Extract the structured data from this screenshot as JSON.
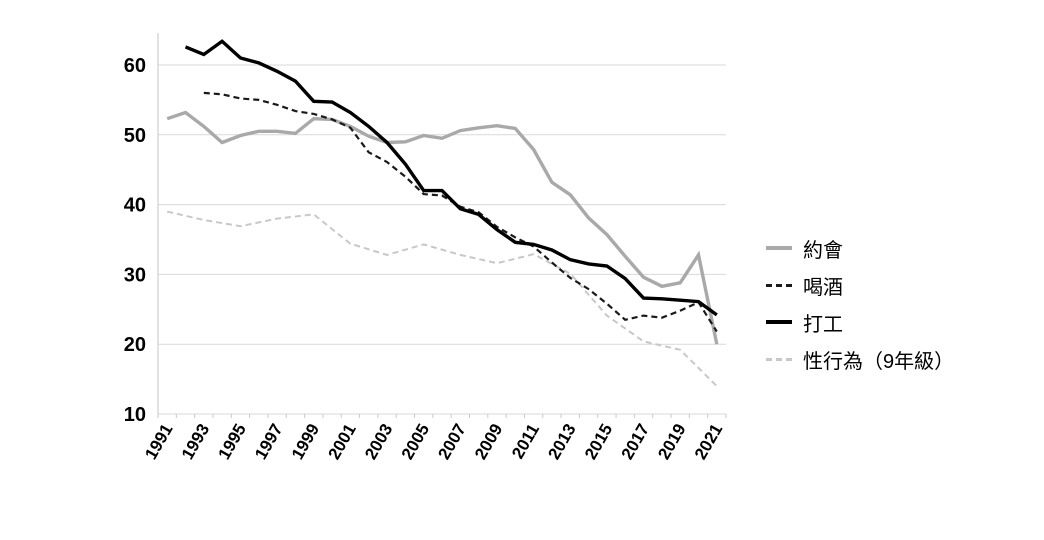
{
  "chart_data": {
    "type": "line",
    "title": "",
    "xlabel": "",
    "ylabel": "",
    "x_range": [
      1991,
      2021
    ],
    "ylim": [
      10,
      65
    ],
    "y_ticks": [
      10,
      20,
      30,
      40,
      50,
      60
    ],
    "x_tick_labels": [
      "1991",
      "1993",
      "1995",
      "1997",
      "1999",
      "2001",
      "2003",
      "2005",
      "2007",
      "2009",
      "2011",
      "2013",
      "2015",
      "2017",
      "2019",
      "2021"
    ],
    "grid": "horizontal-only",
    "legend_position": "right",
    "colors": {
      "grid": "#d9d9d9",
      "axis": "#cfcfcf",
      "text": "#000000",
      "solid_gray": "#a9a9a9",
      "dashed_black": "#1a1a1a",
      "solid_black": "#000000",
      "dashed_lightgray": "#c8c8c8"
    },
    "series": [
      {
        "name": "性行為（9年級）",
        "style": "dashed-lightgray",
        "color": "#c8c8c8",
        "years": [
          1991,
          1993,
          1995,
          1997,
          1999,
          2001,
          2003,
          2005,
          2007,
          2009,
          2011,
          2013,
          2015,
          2017,
          2019,
          2021
        ],
        "values": [
          39.0,
          37.8,
          36.9,
          38.0,
          38.6,
          34.4,
          32.8,
          34.3,
          32.8,
          31.6,
          32.9,
          30.1,
          24.1,
          20.4,
          19.2,
          14.0
        ]
      },
      {
        "name": "約會",
        "style": "solid-gray",
        "color": "#a9a9a9",
        "years": [
          1991,
          1992,
          1993,
          1994,
          1995,
          1996,
          1997,
          1998,
          1999,
          2000,
          2001,
          2002,
          2003,
          2004,
          2005,
          2006,
          2007,
          2008,
          2009,
          2010,
          2011,
          2012,
          2013,
          2014,
          2015,
          2016,
          2017,
          2018,
          2019,
          2020,
          2021
        ],
        "values": [
          52.3,
          53.2,
          51.2,
          48.9,
          49.9,
          50.5,
          50.5,
          50.2,
          52.3,
          52.2,
          51.2,
          49.8,
          48.9,
          49.0,
          49.9,
          49.5,
          50.6,
          51.0,
          51.3,
          50.9,
          47.9,
          43.2,
          41.4,
          38.1,
          35.7,
          32.6,
          29.6,
          28.3,
          28.8,
          32.8,
          20.0
        ]
      },
      {
        "name": "喝酒",
        "style": "dashed-black",
        "color": "#1a1a1a",
        "years": [
          1993,
          1994,
          1995,
          1996,
          1997,
          1998,
          1999,
          2000,
          2001,
          2002,
          2003,
          2004,
          2005,
          2006,
          2007,
          2008,
          2009,
          2010,
          2011,
          2012,
          2013,
          2014,
          2015,
          2016,
          2017,
          2018,
          2019,
          2020,
          2021
        ],
        "values": [
          56.0,
          55.8,
          55.2,
          55.0,
          54.3,
          53.4,
          53.0,
          52.2,
          51.0,
          47.5,
          46.1,
          44.0,
          41.5,
          41.3,
          39.7,
          38.9,
          36.8,
          35.3,
          34.0,
          31.7,
          29.5,
          27.9,
          25.8,
          23.5,
          24.1,
          23.8,
          24.8,
          26.0,
          21.8
        ]
      },
      {
        "name": "打工",
        "style": "solid-black",
        "color": "#000000",
        "years": [
          1992,
          1993,
          1994,
          1995,
          1996,
          1997,
          1998,
          1999,
          2000,
          2001,
          2002,
          2003,
          2004,
          2005,
          2006,
          2007,
          2008,
          2009,
          2010,
          2011,
          2012,
          2013,
          2014,
          2015,
          2016,
          2017,
          2018,
          2019,
          2020,
          2021
        ],
        "values": [
          62.6,
          61.5,
          63.4,
          61.0,
          60.3,
          59.1,
          57.7,
          54.8,
          54.7,
          53.2,
          51.2,
          48.9,
          45.8,
          42.0,
          42.0,
          39.4,
          38.6,
          36.4,
          34.6,
          34.3,
          33.5,
          32.1,
          31.5,
          31.2,
          29.4,
          26.6,
          26.5,
          26.3,
          26.1,
          24.2
        ]
      }
    ],
    "legend_order": [
      "約會",
      "喝酒",
      "打工",
      "性行為（9年級）"
    ]
  }
}
